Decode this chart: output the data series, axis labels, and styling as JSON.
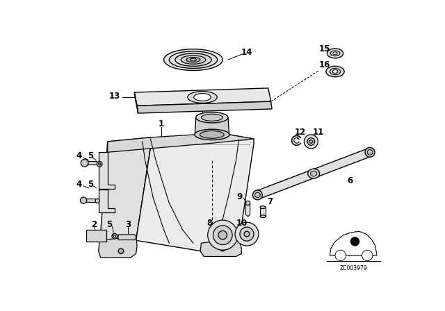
{
  "background_color": "#ffffff",
  "line_color": "#000000",
  "fig_width": 6.4,
  "fig_height": 4.48,
  "dpi": 100,
  "watermark": "ZC003979"
}
